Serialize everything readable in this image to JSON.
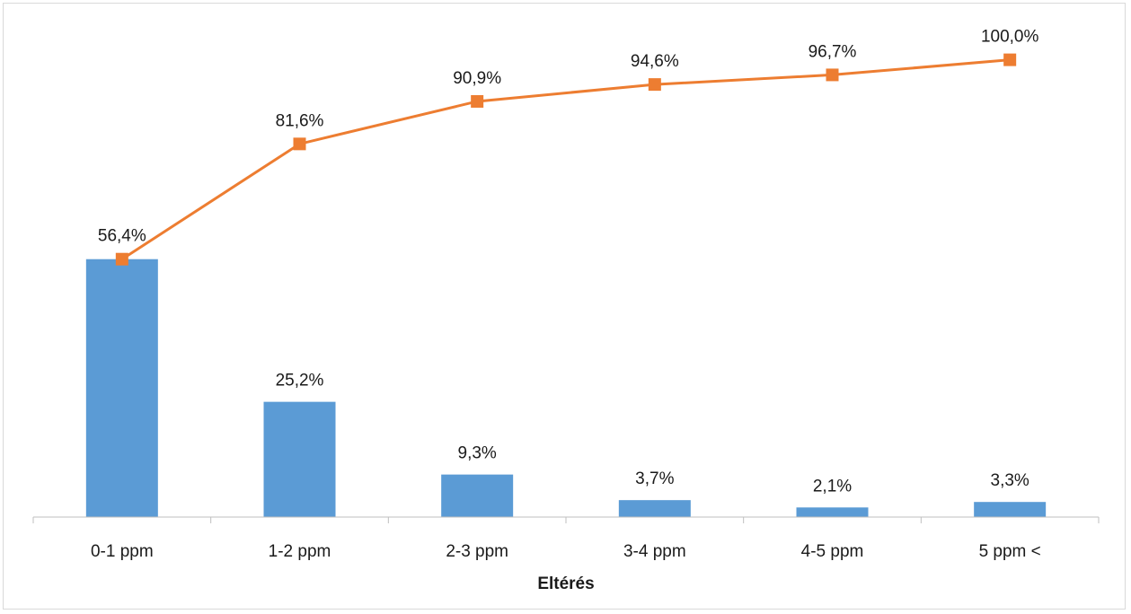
{
  "chart_data": {
    "type": "bar",
    "title": "",
    "xlabel": "Eltérés",
    "ylabel": "",
    "ylim": [
      0,
      100
    ],
    "grid": false,
    "legend": "none",
    "categories": [
      "0-1 ppm",
      "1-2 ppm",
      "2-3 ppm",
      "3-4 ppm",
      "4-5 ppm",
      "5 ppm <"
    ],
    "series": [
      {
        "type": "bar",
        "values": [
          56.4,
          25.2,
          9.3,
          3.7,
          2.1,
          3.3
        ],
        "labels": [
          "56,4%",
          "25,2%",
          "9,3%",
          "3,7%",
          "2,1%",
          "3,3%"
        ],
        "color": "#5b9bd5"
      },
      {
        "type": "line",
        "marker": "square",
        "values": [
          56.4,
          81.6,
          90.9,
          94.6,
          96.7,
          100.0
        ],
        "labels": [
          "56,4%",
          "81,6%",
          "90,9%",
          "94,6%",
          "96,7%",
          "100,0%"
        ],
        "color": "#ed7d31"
      }
    ]
  }
}
